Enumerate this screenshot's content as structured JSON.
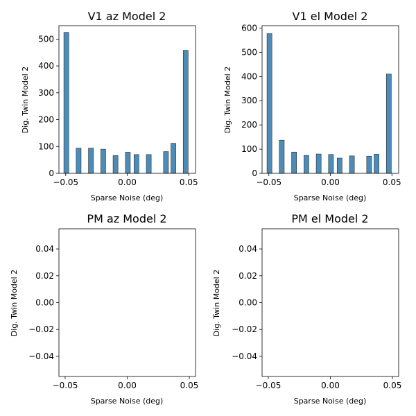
{
  "chart_data": [
    {
      "type": "bar",
      "title": "V1 az Model 2",
      "xlabel": "Sparse Noise (deg)",
      "ylabel": "Dig. Twin Model 2",
      "xlim": [
        -0.0555,
        0.0555
      ],
      "ylim": [
        0,
        550
      ],
      "xticks": [
        -0.05,
        0.0,
        0.05
      ],
      "xtick_labels": [
        "−0.05",
        "0.00",
        "0.05"
      ],
      "yticks": [
        0,
        100,
        200,
        300,
        400,
        500
      ],
      "ytick_labels": [
        "0",
        "100",
        "200",
        "300",
        "400",
        "500"
      ],
      "bar_width": 0.004,
      "x": [
        -0.0495,
        -0.0395,
        -0.0295,
        -0.0195,
        -0.0095,
        0.0005,
        0.0075,
        0.0175,
        0.0315,
        0.0375,
        0.0475
      ],
      "values": [
        525,
        94,
        94,
        90,
        66,
        79,
        70,
        70,
        81,
        112,
        458
      ],
      "color": "#4c8cb9",
      "grid": false
    },
    {
      "type": "bar",
      "title": "V1 el Model 2",
      "xlabel": "Sparse Noise (deg)",
      "ylabel": "Dig. Twin Model 2",
      "xlim": [
        -0.0555,
        0.0555
      ],
      "ylim": [
        0,
        610
      ],
      "xticks": [
        -0.05,
        0.0,
        0.05
      ],
      "xtick_labels": [
        "−0.05",
        "0.00",
        "0.05"
      ],
      "yticks": [
        0,
        100,
        200,
        300,
        400,
        500,
        600
      ],
      "ytick_labels": [
        "0",
        "100",
        "200",
        "300",
        "400",
        "500",
        "600"
      ],
      "bar_width": 0.004,
      "x": [
        -0.0495,
        -0.0395,
        -0.0295,
        -0.0195,
        -0.0095,
        0.0005,
        0.0075,
        0.0175,
        0.0315,
        0.0375,
        0.0475
      ],
      "values": [
        577,
        137,
        88,
        74,
        80,
        78,
        63,
        72,
        71,
        79,
        410
      ],
      "color": "#4c8cb9",
      "grid": false
    },
    {
      "type": "bar",
      "title": "PM az Model 2",
      "xlabel": "Sparse Noise (deg)",
      "ylabel": "Dig. Twin Model 2",
      "xlim": [
        -0.055,
        0.055
      ],
      "ylim": [
        -0.055,
        0.055
      ],
      "xticks": [
        -0.05,
        0.0,
        0.05
      ],
      "xtick_labels": [
        "−0.05",
        "0.00",
        "0.05"
      ],
      "yticks": [
        -0.04,
        -0.02,
        0.0,
        0.02,
        0.04
      ],
      "ytick_labels": [
        "−0.04",
        "−0.02",
        "0.00",
        "0.02",
        "0.04"
      ],
      "x": [],
      "values": [],
      "grid": false
    },
    {
      "type": "bar",
      "title": "PM el Model 2",
      "xlabel": "Sparse Noise (deg)",
      "ylabel": "Dig. Twin Model 2",
      "xlim": [
        -0.055,
        0.055
      ],
      "ylim": [
        -0.055,
        0.055
      ],
      "xticks": [
        -0.05,
        0.0,
        0.05
      ],
      "xtick_labels": [
        "−0.05",
        "0.00",
        "0.05"
      ],
      "yticks": [
        -0.04,
        -0.02,
        0.0,
        0.02,
        0.04
      ],
      "ytick_labels": [
        "−0.04",
        "−0.02",
        "0.00",
        "0.02",
        "0.04"
      ],
      "x": [],
      "values": [],
      "grid": false
    }
  ]
}
